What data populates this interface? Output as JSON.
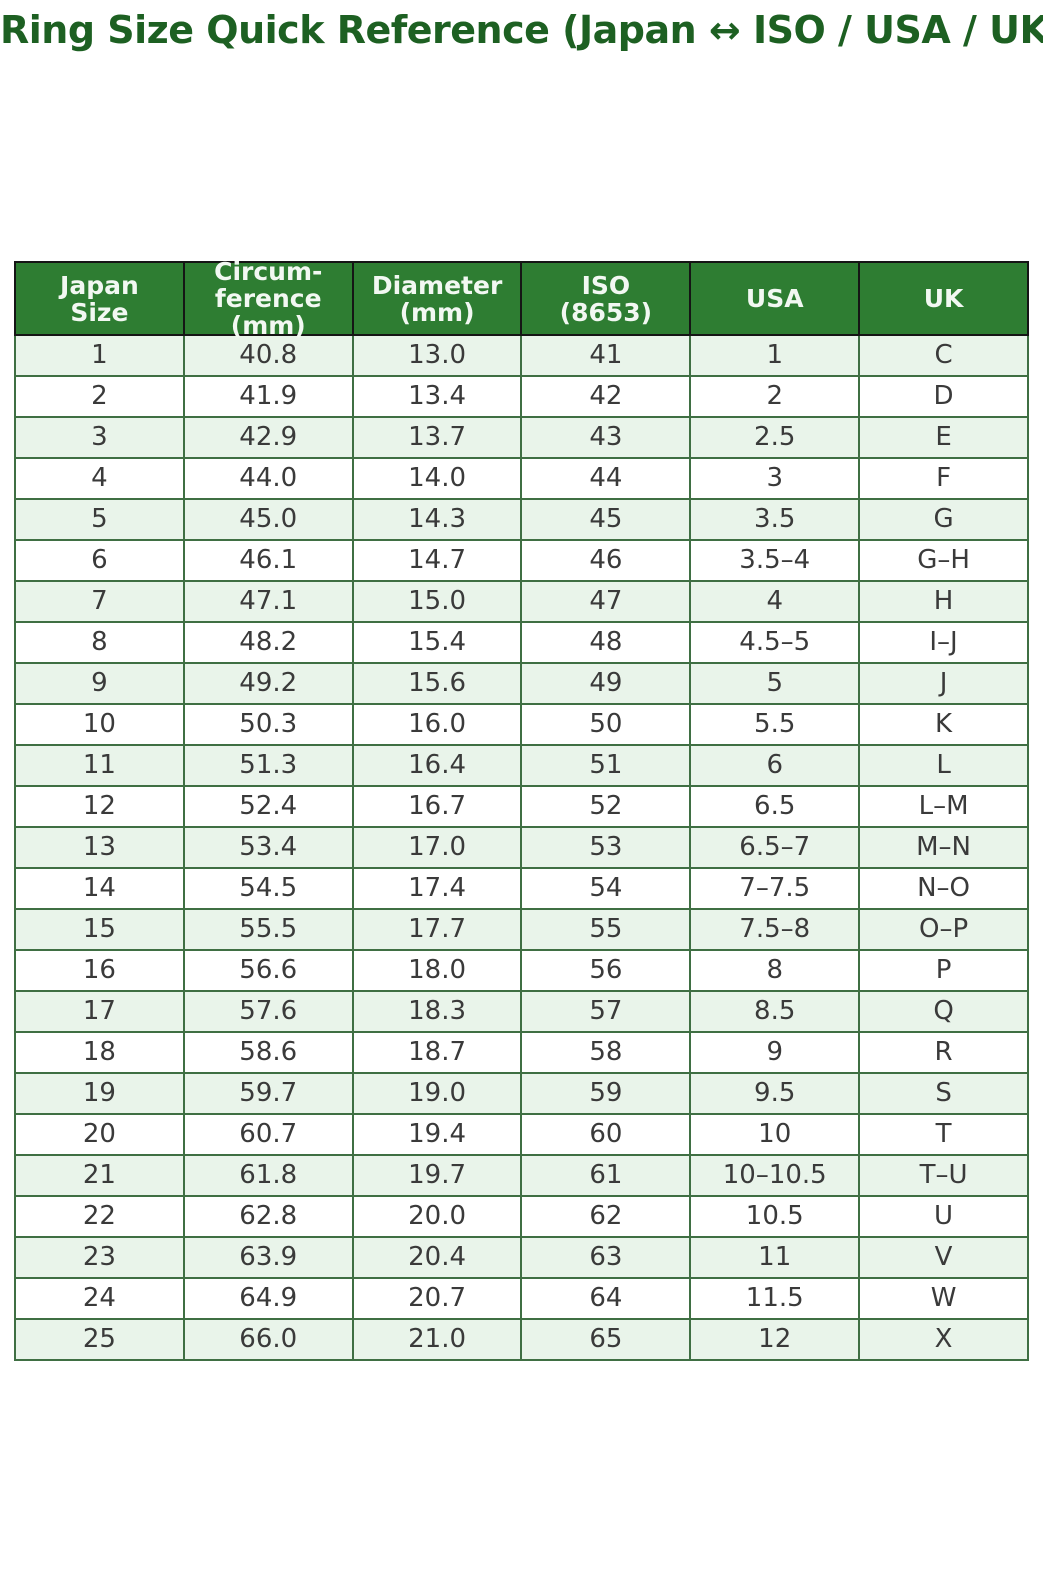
{
  "title": "Ring Size Quick Reference (Japan ↔ ISO / USA / UK)",
  "table": {
    "columns": [
      "Japan\nSize",
      "Circum-\nference\n(mm)",
      "Diameter\n(mm)",
      "ISO\n(8653)",
      "USA",
      "UK"
    ],
    "rows": [
      [
        "1",
        "40.8",
        "13.0",
        "41",
        "1",
        "C"
      ],
      [
        "2",
        "41.9",
        "13.4",
        "42",
        "2",
        "D"
      ],
      [
        "3",
        "42.9",
        "13.7",
        "43",
        "2.5",
        "E"
      ],
      [
        "4",
        "44.0",
        "14.0",
        "44",
        "3",
        "F"
      ],
      [
        "5",
        "45.0",
        "14.3",
        "45",
        "3.5",
        "G"
      ],
      [
        "6",
        "46.1",
        "14.7",
        "46",
        "3.5–4",
        "G–H"
      ],
      [
        "7",
        "47.1",
        "15.0",
        "47",
        "4",
        "H"
      ],
      [
        "8",
        "48.2",
        "15.4",
        "48",
        "4.5–5",
        "I–J"
      ],
      [
        "9",
        "49.2",
        "15.6",
        "49",
        "5",
        "J"
      ],
      [
        "10",
        "50.3",
        "16.0",
        "50",
        "5.5",
        "K"
      ],
      [
        "11",
        "51.3",
        "16.4",
        "51",
        "6",
        "L"
      ],
      [
        "12",
        "52.4",
        "16.7",
        "52",
        "6.5",
        "L–M"
      ],
      [
        "13",
        "53.4",
        "17.0",
        "53",
        "6.5–7",
        "M–N"
      ],
      [
        "14",
        "54.5",
        "17.4",
        "54",
        "7–7.5",
        "N–O"
      ],
      [
        "15",
        "55.5",
        "17.7",
        "55",
        "7.5–8",
        "O–P"
      ],
      [
        "16",
        "56.6",
        "18.0",
        "56",
        "8",
        "P"
      ],
      [
        "17",
        "57.6",
        "18.3",
        "57",
        "8.5",
        "Q"
      ],
      [
        "18",
        "58.6",
        "18.7",
        "58",
        "9",
        "R"
      ],
      [
        "19",
        "59.7",
        "19.0",
        "59",
        "9.5",
        "S"
      ],
      [
        "20",
        "60.7",
        "19.4",
        "60",
        "10",
        "T"
      ],
      [
        "21",
        "61.8",
        "19.7",
        "61",
        "10–10.5",
        "T–U"
      ],
      [
        "22",
        "62.8",
        "20.0",
        "62",
        "10.5",
        "U"
      ],
      [
        "23",
        "63.9",
        "20.4",
        "63",
        "11",
        "V"
      ],
      [
        "24",
        "64.9",
        "20.7",
        "64",
        "11.5",
        "W"
      ],
      [
        "25",
        "66.0",
        "21.0",
        "65",
        "12",
        "X"
      ]
    ]
  },
  "colors": {
    "title_green": "#1d6022",
    "header_bg": "#2e7d32",
    "header_text": "#f2f8f2",
    "header_border": "#151515",
    "row_stripe": "#e9f4ea",
    "grid_green": "#3f6f43",
    "cell_text": "#3a3a3a"
  }
}
